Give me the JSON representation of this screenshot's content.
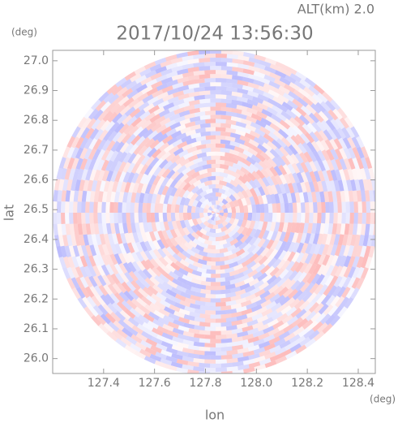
{
  "chart_data": {
    "type": "radar-field",
    "title": "2017/10/24 13:56:30",
    "subtitle": "ALT(km) 2.0",
    "x_label": "lon",
    "y_label": "lat",
    "x_unit": "(deg)",
    "y_unit": "(deg)",
    "xlim": [
      127.2,
      128.467
    ],
    "ylim": [
      25.95,
      27.035
    ],
    "xticks": [
      127.4,
      127.6,
      127.8,
      {
        "value": 128.0,
        "label": "128.0"
      },
      128.2,
      128.4
    ],
    "yticks": [
      {
        "value": 26.0,
        "label": "26.0"
      },
      26.1,
      26.2,
      26.3,
      26.4,
      26.5,
      26.6,
      26.7,
      26.8,
      26.9,
      {
        "value": 27.0,
        "label": "27.0"
      }
    ]
  }
}
